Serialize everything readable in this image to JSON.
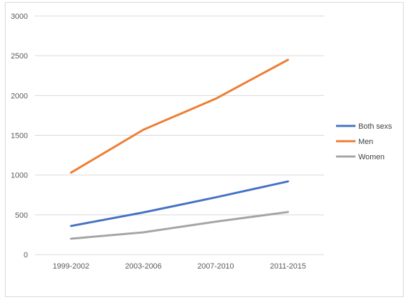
{
  "chart_data": {
    "type": "line",
    "categories": [
      "1999-2002",
      "2003-2006",
      "2007-2010",
      "2011-2015"
    ],
    "series": [
      {
        "name": "Both sexs",
        "color": "#4472c4",
        "values": [
          360,
          530,
          720,
          920
        ]
      },
      {
        "name": "Men",
        "color": "#ed7d31",
        "values": [
          1030,
          1570,
          1960,
          2450
        ]
      },
      {
        "name": "Women",
        "color": "#a5a5a5",
        "values": [
          200,
          280,
          415,
          535
        ]
      }
    ],
    "yticks": [
      "0",
      "500",
      "1000",
      "1500",
      "2000",
      "2500",
      "3000"
    ],
    "ylim": [
      0,
      3000
    ],
    "grid": true,
    "legend_position": "right",
    "gridline_color": "#d9d9d9"
  }
}
